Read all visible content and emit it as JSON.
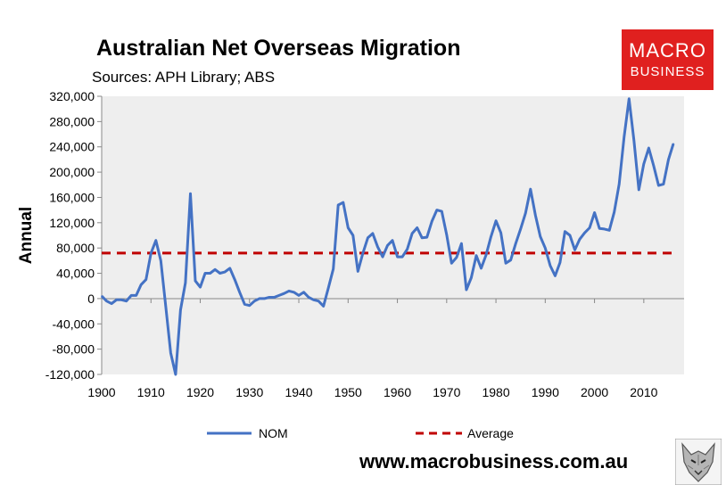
{
  "header": {
    "title": "Australian Net Overseas Migration",
    "subtitle": "Sources: APH Library; ABS"
  },
  "logo": {
    "line1": "MACRO",
    "line2": "BUSINESS"
  },
  "footer": {
    "url": "www.macrobusiness.com.au"
  },
  "colors": {
    "nom": "#4472c4",
    "average": "#c00000",
    "plot_bg": "#eeeeee",
    "logo_bg": "#e0201f"
  },
  "chart_data": {
    "type": "line",
    "ylabel": "Annual",
    "xlabel": "",
    "ylim": [
      -120000,
      320000
    ],
    "xlim": [
      1900,
      2017
    ],
    "yticks": [
      -120000,
      -80000,
      -40000,
      0,
      40000,
      80000,
      120000,
      160000,
      200000,
      240000,
      280000,
      320000
    ],
    "ytick_labels": [
      "-120,000",
      "-80,000",
      "-40,000",
      "0",
      "40,000",
      "80,000",
      "120,000",
      "160,000",
      "200,000",
      "240,000",
      "280,000",
      "320,000"
    ],
    "xticks": [
      1900,
      1910,
      1920,
      1930,
      1940,
      1950,
      1960,
      1970,
      1980,
      1990,
      2000,
      2010
    ],
    "xtick_labels": [
      "1900",
      "1910",
      "1920",
      "1930",
      "1940",
      "1950",
      "1960",
      "1970",
      "1980",
      "1990",
      "2000",
      "2010"
    ],
    "grid": false,
    "legend_position": "bottom",
    "series": [
      {
        "name": "NOM",
        "style": "solid",
        "x": [
          1900,
          1901,
          1902,
          1903,
          1904,
          1905,
          1906,
          1907,
          1908,
          1909,
          1910,
          1911,
          1912,
          1913,
          1914,
          1915,
          1916,
          1917,
          1918,
          1919,
          1920,
          1921,
          1922,
          1923,
          1924,
          1925,
          1926,
          1927,
          1928,
          1929,
          1930,
          1931,
          1932,
          1933,
          1934,
          1935,
          1936,
          1937,
          1938,
          1939,
          1940,
          1941,
          1942,
          1943,
          1944,
          1945,
          1946,
          1947,
          1948,
          1949,
          1950,
          1951,
          1952,
          1953,
          1954,
          1955,
          1956,
          1957,
          1958,
          1959,
          1960,
          1961,
          1962,
          1963,
          1964,
          1965,
          1966,
          1967,
          1968,
          1969,
          1970,
          1971,
          1972,
          1973,
          1974,
          1975,
          1976,
          1977,
          1978,
          1979,
          1980,
          1981,
          1982,
          1983,
          1984,
          1985,
          1986,
          1987,
          1988,
          1989,
          1990,
          1991,
          1992,
          1993,
          1994,
          1995,
          1996,
          1997,
          1998,
          1999,
          2000,
          2001,
          2002,
          2003,
          2004,
          2005,
          2006,
          2007,
          2008,
          2009,
          2010,
          2011,
          2012,
          2013,
          2014,
          2015,
          2016
        ],
        "values": [
          4000,
          -4000,
          -8000,
          -2000,
          -2000,
          -4000,
          5000,
          5000,
          22000,
          30000,
          72000,
          92000,
          60000,
          -12000,
          -86000,
          -120000,
          -18000,
          25000,
          166000,
          28000,
          18000,
          40000,
          40000,
          46000,
          40000,
          42000,
          48000,
          30000,
          10000,
          -9000,
          -11000,
          -4000,
          0,
          0,
          2000,
          2000,
          5000,
          8000,
          12000,
          10000,
          5000,
          10000,
          2000,
          -2000,
          -4000,
          -12000,
          17000,
          47000,
          148000,
          152000,
          112000,
          100000,
          43000,
          72000,
          96000,
          103000,
          82000,
          66000,
          84000,
          92000,
          66000,
          66000,
          78000,
          103000,
          112000,
          96000,
          97000,
          122000,
          140000,
          138000,
          101000,
          56000,
          65000,
          87000,
          14000,
          33000,
          68000,
          48000,
          69000,
          98000,
          123000,
          104000,
          56000,
          61000,
          87000,
          110000,
          135000,
          173000,
          132000,
          98000,
          80000,
          52000,
          36000,
          57000,
          106000,
          100000,
          77000,
          94000,
          104000,
          112000,
          136000,
          111000,
          110000,
          108000,
          137000,
          181000,
          255000,
          316000,
          250000,
          172000,
          213000,
          238000,
          210000,
          179000,
          181000,
          220000,
          245000
        ]
      },
      {
        "name": "Average",
        "style": "dashed",
        "x": [
          1900,
          2016
        ],
        "values": [
          72000,
          72000
        ]
      }
    ]
  }
}
